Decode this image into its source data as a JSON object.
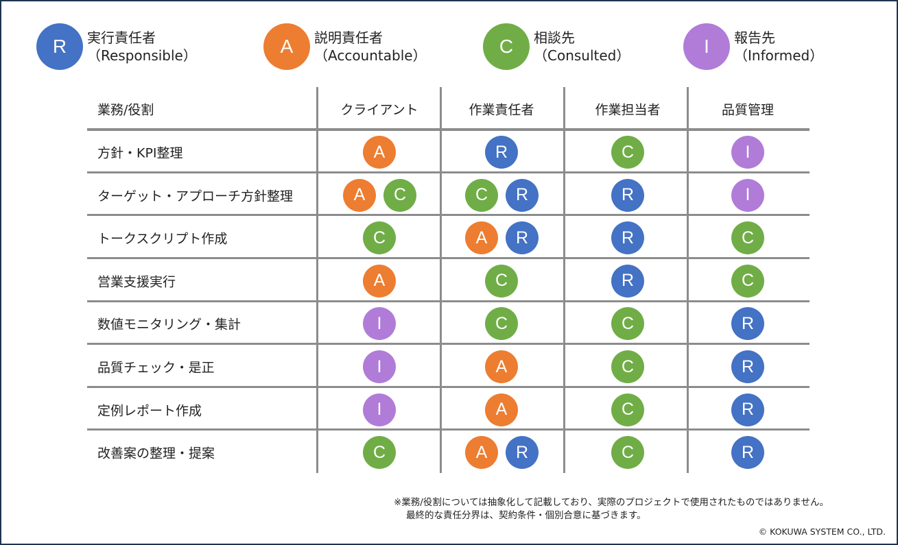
{
  "colors": {
    "R": "#4472C4",
    "A": "#ED7D31",
    "C": "#70AD47",
    "I": "#B07CD8",
    "grid": "#8C8C8C",
    "border": "#1F3350"
  },
  "legend": [
    {
      "letter": "R",
      "label": "実行責任者",
      "sub": "（Responsible）"
    },
    {
      "letter": "A",
      "label": "説明責任者",
      "sub": "（Accountable）"
    },
    {
      "letter": "C",
      "label": "相談先",
      "sub": "（Consulted）"
    },
    {
      "letter": "I",
      "label": "報告先",
      "sub": "（Informed）"
    }
  ],
  "table": {
    "headers": [
      "業務/役割",
      "クライアント",
      "作業責任者",
      "作業担当者",
      "品質管理"
    ],
    "rows": [
      {
        "task": "方針・KPI整理",
        "cells": [
          [
            "A"
          ],
          [
            "R"
          ],
          [
            "C"
          ],
          [
            "I"
          ]
        ]
      },
      {
        "task": "ターゲット・アプローチ方針整理",
        "cells": [
          [
            "A",
            "C"
          ],
          [
            "C",
            "R"
          ],
          [
            "R"
          ],
          [
            "I"
          ]
        ]
      },
      {
        "task": "トークスクリプト作成",
        "cells": [
          [
            "C"
          ],
          [
            "A",
            "R"
          ],
          [
            "R"
          ],
          [
            "C"
          ]
        ]
      },
      {
        "task": "営業支援実行",
        "cells": [
          [
            "A"
          ],
          [
            "C"
          ],
          [
            "R"
          ],
          [
            "C"
          ]
        ]
      },
      {
        "task": "数値モニタリング・集計",
        "cells": [
          [
            "I"
          ],
          [
            "C"
          ],
          [
            "C"
          ],
          [
            "R"
          ]
        ]
      },
      {
        "task": "品質チェック・是正",
        "cells": [
          [
            "I"
          ],
          [
            "A"
          ],
          [
            "C"
          ],
          [
            "R"
          ]
        ]
      },
      {
        "task": "定例レポート作成",
        "cells": [
          [
            "I"
          ],
          [
            "A"
          ],
          [
            "C"
          ],
          [
            "R"
          ]
        ]
      },
      {
        "task": "改善案の整理・提案",
        "cells": [
          [
            "C"
          ],
          [
            "A",
            "R"
          ],
          [
            "C"
          ],
          [
            "R"
          ]
        ]
      }
    ]
  },
  "footnote": {
    "line1": "※業務/役割については抽象化して記載しており、実際のプロジェクトで使用されたものではありません。",
    "line2": "最終的な責任分界は、契約条件・個別合意に基づきます。"
  },
  "copyright": "© KOKUWA SYSTEM CO., LTD."
}
